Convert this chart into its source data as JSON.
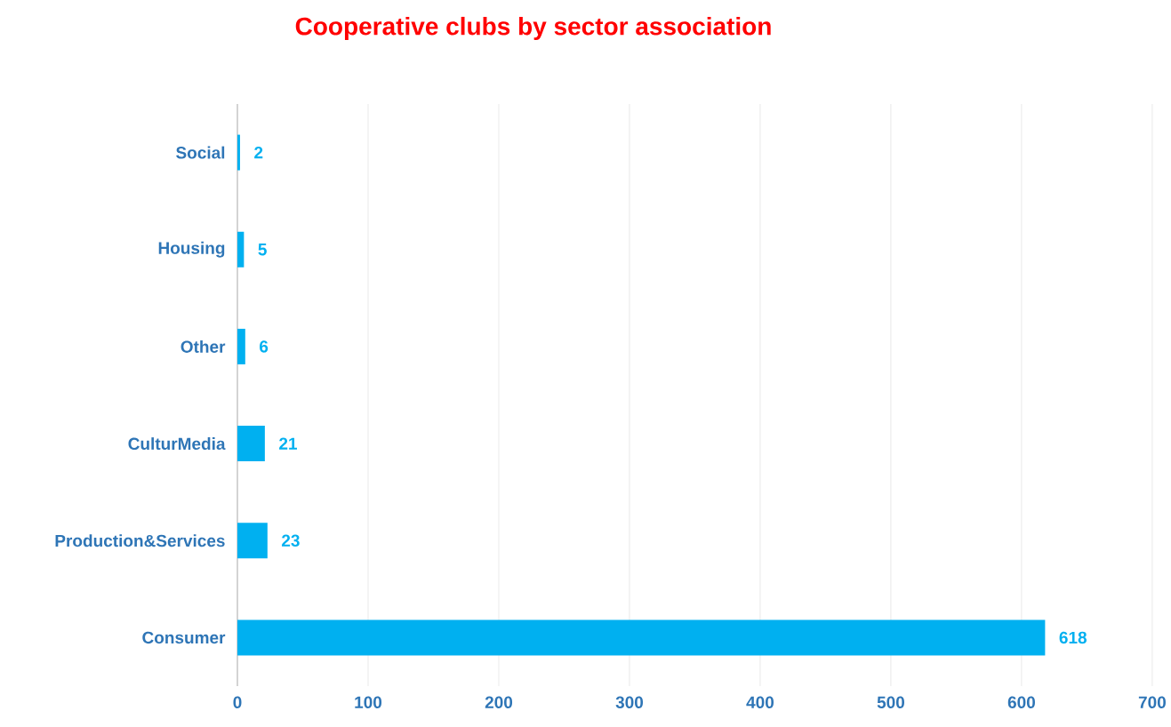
{
  "chart_data": {
    "type": "bar",
    "orientation": "horizontal",
    "title": "Cooperative clubs by sector association",
    "categories": [
      "Social",
      "Housing",
      "Other",
      "CulturMedia",
      "Production&Services",
      "Consumer"
    ],
    "values": [
      2,
      5,
      6,
      21,
      23,
      618
    ],
    "color": "#00b0f0",
    "xlim": [
      0,
      700
    ],
    "xticks": [
      0,
      100,
      200,
      300,
      400,
      500,
      600,
      700
    ],
    "grid": "x",
    "data_labels": true
  }
}
